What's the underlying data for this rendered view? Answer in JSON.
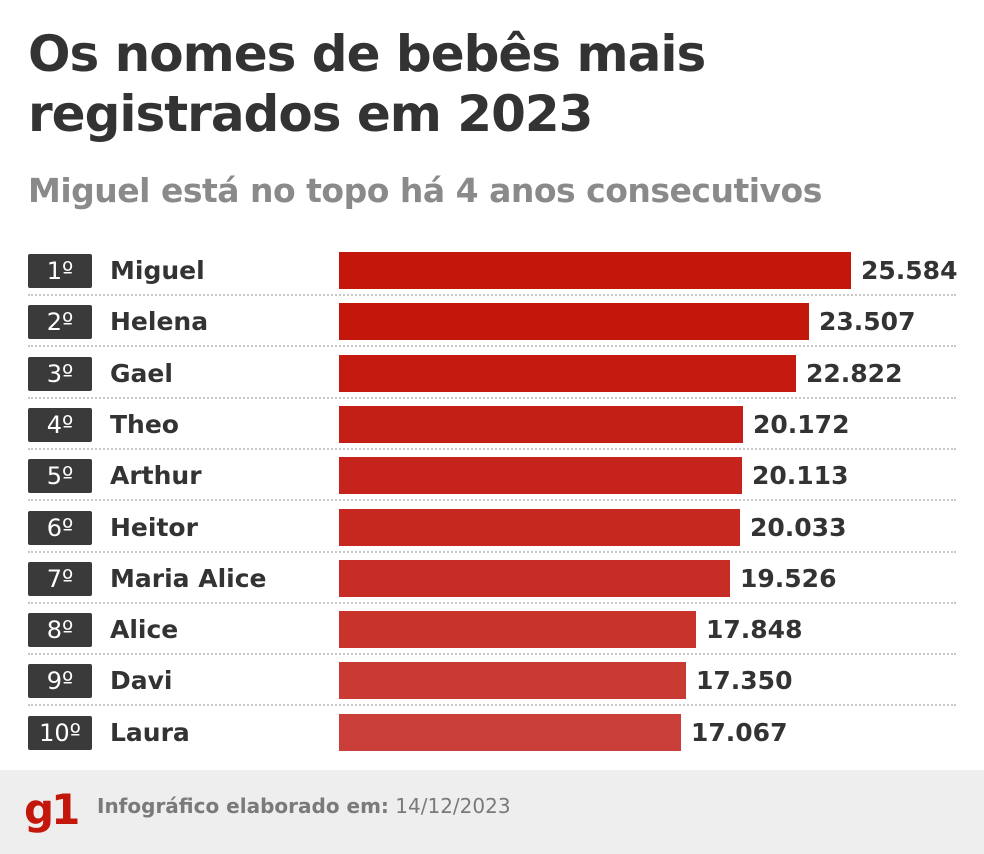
{
  "title": "Os nomes de bebês mais registrados em 2023",
  "subtitle": "Miguel está no topo há 4 anos consecutivos",
  "chart_data": {
    "type": "bar",
    "orientation": "horizontal",
    "title": "Os nomes de bebês mais registrados em 2023",
    "subtitle": "Miguel está no topo há 4 anos consecutivos",
    "xlabel": "",
    "ylabel": "",
    "xlim": [
      0,
      25584
    ],
    "ranks": [
      "1º",
      "2º",
      "3º",
      "4º",
      "5º",
      "6º",
      "7º",
      "8º",
      "9º",
      "10º"
    ],
    "categories": [
      "Miguel",
      "Helena",
      "Gael",
      "Theo",
      "Arthur",
      "Heitor",
      "Maria Alice",
      "Alice",
      "Davi",
      "Laura"
    ],
    "values": [
      25584,
      23507,
      22822,
      20172,
      20113,
      20033,
      19526,
      17848,
      17350,
      17067
    ],
    "value_labels": [
      "25.584",
      "23.507",
      "22.822",
      "20.172",
      "20.113",
      "20.033",
      "19.526",
      "17.848",
      "17.350",
      "17.067"
    ],
    "colors": [
      "#c4170c",
      "#c4170c",
      "#c41a10",
      "#c41f16",
      "#c5231b",
      "#c6271f",
      "#c72d26",
      "#c8342c",
      "#c93a33",
      "#ca3f39"
    ],
    "grid": false,
    "legend": "none"
  },
  "footer": {
    "logo": "g1",
    "label": "Infográfico elaborado em:",
    "date": "14/12/2023"
  }
}
